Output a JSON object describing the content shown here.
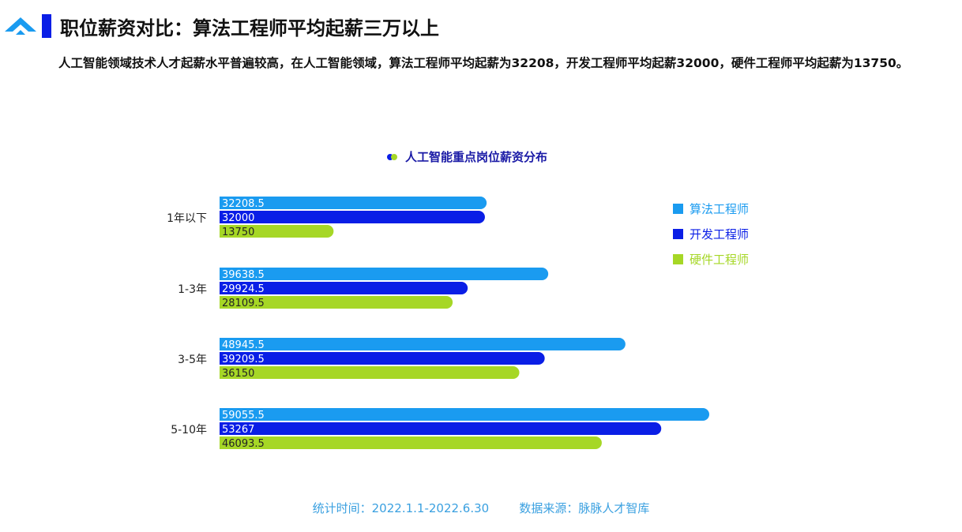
{
  "header": {
    "title": "职位薪资对比：算法工程师平均起薪三万以上",
    "description": "人工智能领域技术人才起薪水平普遍较高，在人工智能领域，算法工程师平均起薪为32208，开发工程师平均起薪32000，硬件工程师平均起薪为13750。"
  },
  "chart_data": {
    "type": "bar",
    "orientation": "horizontal",
    "title": "人工智能重点岗位薪资分布",
    "categories": [
      "1年以下",
      "1-3年",
      "3-5年",
      "5-10年"
    ],
    "series": [
      {
        "name": "算法工程师",
        "color": "#1a9bf0",
        "values": [
          32208.5,
          39638.5,
          48945.5,
          59055.5
        ],
        "labels": [
          "32208.5",
          "39638.5",
          "48945.5",
          "59055.5"
        ]
      },
      {
        "name": "开发工程师",
        "color": "#0a1ee6",
        "values": [
          32000,
          29924.5,
          39209.5,
          53267
        ],
        "labels": [
          "32000",
          "29924.5",
          "39209.5",
          "53267"
        ]
      },
      {
        "name": "硬件工程师",
        "color": "#a6d726",
        "values": [
          13750,
          28109.5,
          36150,
          46093.5
        ],
        "labels": [
          "13750",
          "28109.5",
          "36150",
          "46093.5"
        ]
      }
    ],
    "legend_position": "right",
    "grid": false
  },
  "footer": {
    "text": "统计时间：2022.1.1-2022.6.30        数据来源：脉脉人才智库"
  }
}
